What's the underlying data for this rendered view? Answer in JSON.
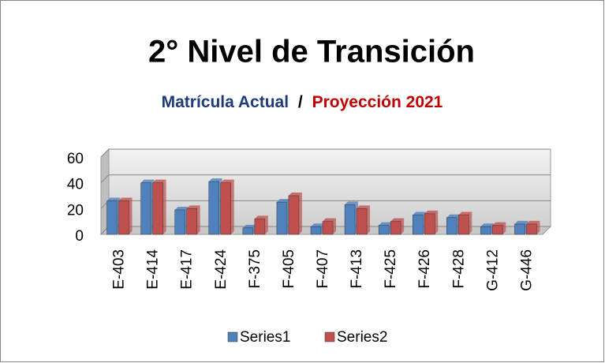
{
  "chart_data": {
    "type": "bar3d",
    "title": "2° Nivel de Transición",
    "subtitle": [
      "Matrícula Actual",
      "/",
      "Proyección 2021"
    ],
    "categories": [
      "E-403",
      "E-414",
      "E-417",
      "E-424",
      "F-375",
      "F-405",
      "F-407",
      "F-413",
      "F-425",
      "F-426",
      "F-428",
      "G-412",
      "G-446"
    ],
    "series": [
      {
        "name": "Series1",
        "color": "#4f81bd",
        "values": [
          26,
          40,
          19,
          41,
          5,
          25,
          6,
          23,
          7,
          15,
          13,
          6,
          8
        ]
      },
      {
        "name": "Series2",
        "color": "#c0504d",
        "values": [
          26,
          40,
          20,
          40,
          12,
          30,
          10,
          20,
          10,
          16,
          15,
          7,
          8
        ]
      }
    ],
    "ylim": [
      0,
      60
    ],
    "yticks": [
      0,
      20,
      40,
      60
    ],
    "grid": true,
    "legend": "bottom"
  }
}
